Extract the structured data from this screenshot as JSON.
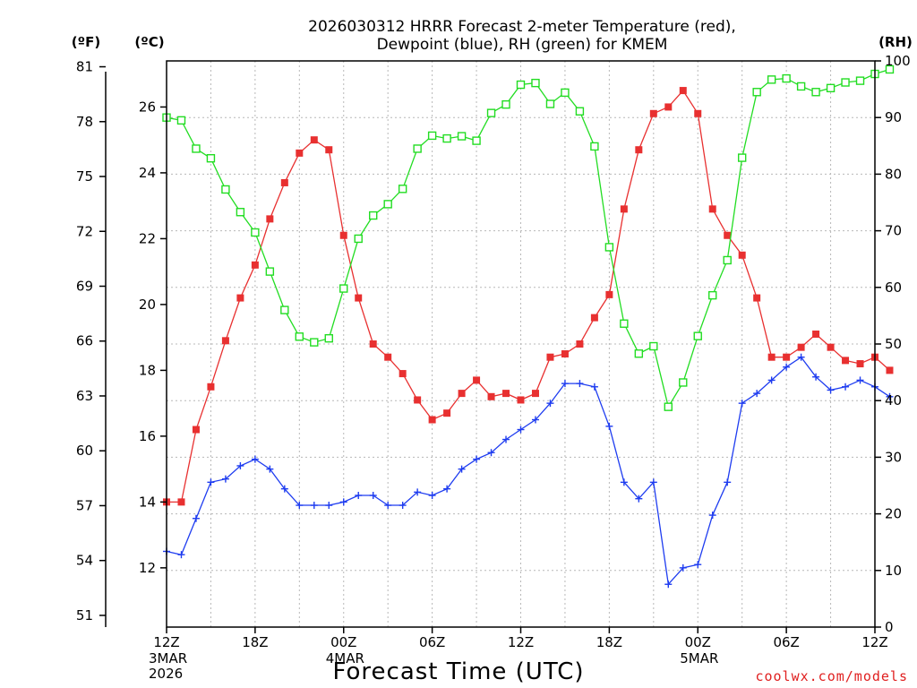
{
  "chart_data": {
    "type": "line",
    "title_line1": "2026030312 HRRR Forecast 2-meter Temperature (red),",
    "title_line2": "Dewpoint (blue), RH (green) for KMEM",
    "xlabel": "Forecast Time (UTC)",
    "credit": "coolwx.com/models",
    "units": {
      "fahrenheit": "(ºF)",
      "celsius": "(ºC)",
      "rh": "(RH)"
    },
    "left_axis_f": {
      "ticks": [
        "51",
        "54",
        "57",
        "60",
        "63",
        "66",
        "69",
        "72",
        "75",
        "78",
        "81"
      ]
    },
    "celsius_axis": {
      "ticks": [
        "12",
        "14",
        "16",
        "18",
        "20",
        "22",
        "24",
        "26"
      ],
      "ylim": [
        10.2,
        27.4
      ]
    },
    "rh_axis": {
      "ticks": [
        "0",
        "10",
        "20",
        "30",
        "40",
        "50",
        "60",
        "70",
        "80",
        "90",
        "100"
      ],
      "ylim": [
        0,
        100
      ]
    },
    "x_ticks": [
      {
        "hour": 0,
        "label": "12Z",
        "sub1": "3MAR",
        "sub2": "2026"
      },
      {
        "hour": 6,
        "label": "18Z",
        "sub1": "",
        "sub2": ""
      },
      {
        "hour": 12,
        "label": "00Z",
        "sub1": "4MAR",
        "sub2": ""
      },
      {
        "hour": 18,
        "label": "06Z",
        "sub1": "",
        "sub2": ""
      },
      {
        "hour": 24,
        "label": "12Z",
        "sub1": "",
        "sub2": ""
      },
      {
        "hour": 30,
        "label": "18Z",
        "sub1": "",
        "sub2": ""
      },
      {
        "hour": 36,
        "label": "00Z",
        "sub1": "5MAR",
        "sub2": ""
      },
      {
        "hour": 42,
        "label": "06Z",
        "sub1": "",
        "sub2": ""
      },
      {
        "hour": 48,
        "label": "12Z",
        "sub1": "",
        "sub2": ""
      }
    ],
    "xlim": [
      0,
      48
    ],
    "grid": true,
    "series": [
      {
        "name": "Temperature",
        "axis": "celsius",
        "color": "#e83030",
        "marker": "filled-square",
        "values": [
          14.0,
          14.0,
          16.2,
          17.5,
          18.9,
          20.2,
          21.2,
          22.6,
          23.7,
          24.6,
          25.0,
          24.7,
          22.1,
          20.2,
          18.8,
          18.4,
          17.9,
          17.1,
          16.5,
          16.7,
          17.3,
          17.7,
          17.2,
          17.3,
          17.1,
          17.3,
          18.4,
          18.5,
          18.8,
          19.6,
          20.3,
          22.9,
          24.7,
          25.8,
          26.0,
          26.5,
          25.8,
          22.9,
          22.1,
          21.5,
          20.2,
          18.4,
          18.4,
          18.7,
          19.1,
          18.7,
          18.3,
          18.2,
          18.4,
          18.0
        ]
      },
      {
        "name": "Dewpoint",
        "axis": "celsius",
        "color": "#1e3cf0",
        "marker": "plus",
        "values": [
          12.5,
          12.4,
          13.5,
          14.6,
          14.7,
          15.1,
          15.3,
          15.0,
          14.4,
          13.9,
          13.9,
          13.9,
          14.0,
          14.2,
          14.2,
          13.9,
          13.9,
          14.3,
          14.2,
          14.4,
          15.0,
          15.3,
          15.5,
          15.9,
          16.2,
          16.5,
          17.0,
          17.6,
          17.6,
          17.5,
          16.3,
          14.6,
          14.1,
          14.6,
          11.5,
          12.0,
          12.1,
          13.6,
          14.6,
          17.0,
          17.3,
          17.7,
          18.1,
          18.4,
          17.8,
          17.4,
          17.5,
          17.7,
          17.5,
          17.2
        ]
      },
      {
        "name": "RH",
        "axis": "rh",
        "color": "#22dd22",
        "marker": "open-square",
        "values": [
          90.0,
          89.5,
          84.5,
          82.8,
          77.3,
          73.3,
          69.7,
          62.8,
          56.0,
          51.3,
          50.3,
          51.0,
          59.8,
          68.6,
          72.7,
          74.7,
          77.4,
          84.5,
          86.8,
          86.3,
          86.7,
          85.9,
          90.8,
          92.3,
          95.8,
          96.1,
          92.4,
          94.4,
          91.1,
          84.9,
          67.1,
          53.6,
          48.3,
          49.6,
          38.9,
          43.2,
          51.4,
          58.6,
          64.8,
          82.9,
          94.5,
          96.7,
          96.9,
          95.5,
          94.5,
          95.2,
          96.2,
          96.5,
          97.7,
          98.5
        ]
      }
    ]
  }
}
